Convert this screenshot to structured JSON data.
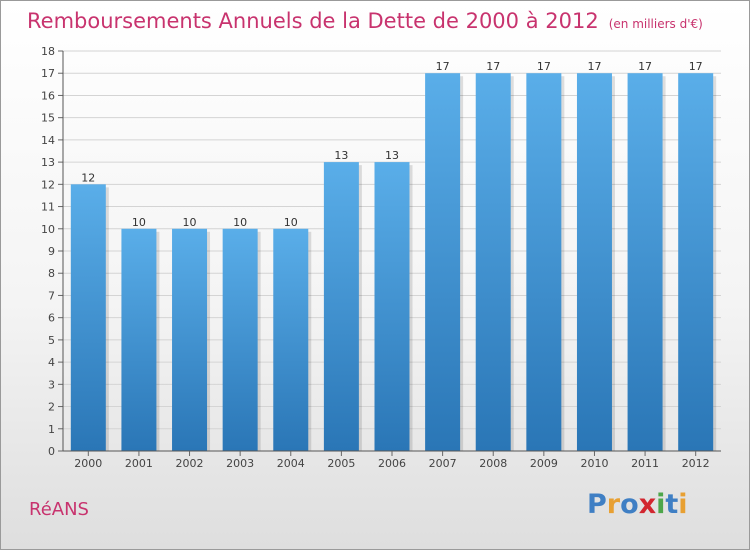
{
  "title": "Remboursements Annuels de la Dette de 2000 à 2012",
  "subtitle": "(en milliers d'€)",
  "location": "RéANS",
  "brand": {
    "letters": [
      "P",
      "r",
      "o",
      "x",
      "i",
      "t",
      "i"
    ],
    "colors": [
      "#3f7fc4",
      "#e8a032",
      "#3f7fc4",
      "#d2262f",
      "#4da64a",
      "#3f7fc4",
      "#e8a032"
    ]
  },
  "colors": {
    "bar": "#3d94d8",
    "bar_light": "#5aaee9",
    "bar_dark": "#2a76b6",
    "title": "#c8336e"
  },
  "chart_data": {
    "type": "bar",
    "title": "Remboursements Annuels de la Dette de 2000 à 2012",
    "subtitle": "(en milliers d'€)",
    "xlabel": "",
    "ylabel": "",
    "categories": [
      "2000",
      "2001",
      "2002",
      "2003",
      "2004",
      "2005",
      "2006",
      "2007",
      "2008",
      "2009",
      "2010",
      "2011",
      "2012"
    ],
    "values": [
      12,
      10,
      10,
      10,
      10,
      13,
      13,
      17,
      17,
      17,
      17,
      17,
      17
    ],
    "ylim": [
      0,
      18
    ],
    "yticks": [
      0,
      1,
      2,
      3,
      4,
      5,
      6,
      7,
      8,
      9,
      10,
      11,
      12,
      13,
      14,
      15,
      16,
      17,
      18
    ],
    "grid": true
  }
}
